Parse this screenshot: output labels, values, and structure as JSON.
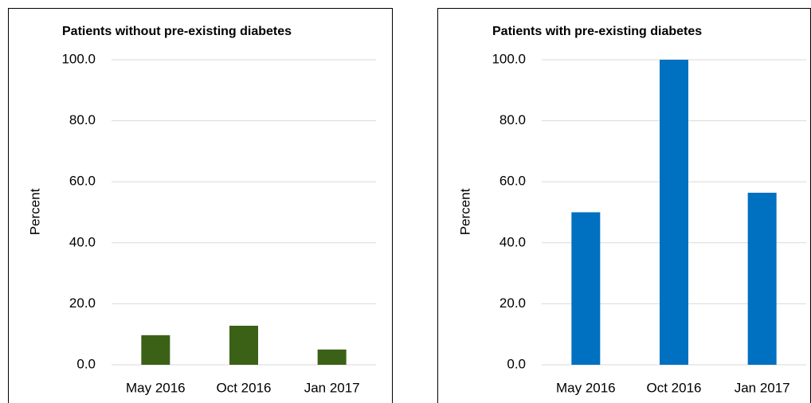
{
  "chart_data": [
    {
      "type": "bar",
      "title": "Patients without pre-existing diabetes",
      "y_label": "Percent",
      "categories": [
        "May 2016",
        "Oct 2016",
        "Jan 2017"
      ],
      "values": [
        9.7,
        12.8,
        5.0
      ],
      "color": "#3b6117",
      "ylim": [
        0,
        100
      ],
      "yticks": [
        {
          "value": 0,
          "label": "0.0"
        },
        {
          "value": 20,
          "label": "20.0"
        },
        {
          "value": 40,
          "label": "40.0"
        },
        {
          "value": 60,
          "label": "60.0"
        },
        {
          "value": 80,
          "label": "80.0"
        },
        {
          "value": 100,
          "label": "100.0"
        }
      ],
      "grid": true
    },
    {
      "type": "bar",
      "title": "Patients with pre-existing diabetes",
      "y_label": "Percent",
      "categories": [
        "May 2016",
        "Oct 2016",
        "Jan 2017"
      ],
      "values": [
        50.0,
        100.0,
        56.4
      ],
      "color": "#0070c0",
      "ylim": [
        0,
        100
      ],
      "yticks": [
        {
          "value": 0,
          "label": "0.0"
        },
        {
          "value": 20,
          "label": "20.0"
        },
        {
          "value": 40,
          "label": "40.0"
        },
        {
          "value": 60,
          "label": "60.0"
        },
        {
          "value": 80,
          "label": "80.0"
        },
        {
          "value": 100,
          "label": "100.0"
        }
      ],
      "grid": true
    }
  ]
}
